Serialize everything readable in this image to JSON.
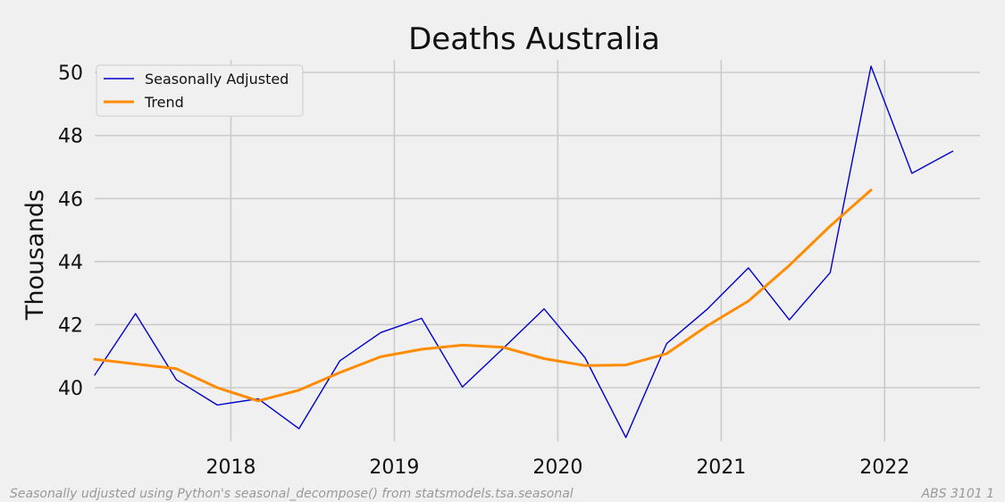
{
  "chart_data": {
    "type": "line",
    "title": "Deaths  Australia",
    "ylabel": "Thousands",
    "xlabel": "",
    "x_ticks": [
      "2018",
      "2019",
      "2020",
      "2021",
      "2022"
    ],
    "y_ticks": [
      "40",
      "42",
      "44",
      "46",
      "48",
      "50"
    ],
    "xlim": [
      "2017-03",
      "2022-08"
    ],
    "ylim": [
      38.3,
      50.4
    ],
    "grid": true,
    "legend_position": "top-left",
    "series": [
      {
        "name": "Seasonally Adjusted",
        "color": "#0000cc",
        "x": [
          "2017-03",
          "2017-06",
          "2017-09",
          "2017-12",
          "2018-03",
          "2018-06",
          "2018-09",
          "2018-12",
          "2019-03",
          "2019-06",
          "2019-09",
          "2019-12",
          "2020-03",
          "2020-06",
          "2020-09",
          "2020-12",
          "2021-03",
          "2021-06",
          "2021-09",
          "2021-12",
          "2022-03",
          "2022-06"
        ],
        "values": [
          40.4,
          42.35,
          40.25,
          39.45,
          39.65,
          38.7,
          40.85,
          41.75,
          42.2,
          40.02,
          41.25,
          42.5,
          40.95,
          38.42,
          41.4,
          42.5,
          43.8,
          42.15,
          43.65,
          50.2,
          46.8,
          47.5
        ]
      },
      {
        "name": "Trend",
        "color": "#ff8c00",
        "x": [
          "2017-03",
          "2017-06",
          "2017-09",
          "2017-12",
          "2018-03",
          "2018-06",
          "2018-09",
          "2018-12",
          "2019-03",
          "2019-06",
          "2019-09",
          "2019-12",
          "2020-03",
          "2020-06",
          "2020-09",
          "2020-12",
          "2021-03",
          "2021-06",
          "2021-09",
          "2021-12"
        ],
        "values": [
          40.9,
          40.75,
          40.6,
          40.0,
          39.58,
          39.92,
          40.48,
          40.98,
          41.22,
          41.35,
          41.28,
          40.92,
          40.7,
          40.72,
          41.08,
          41.97,
          42.75,
          43.88,
          45.13,
          46.27
        ]
      }
    ]
  },
  "footer": {
    "left_note": "Seasonally udjusted using Python's seasonal_decompose() from statsmodels.tsa.seasonal",
    "right_note": "ABS 3101 1"
  }
}
